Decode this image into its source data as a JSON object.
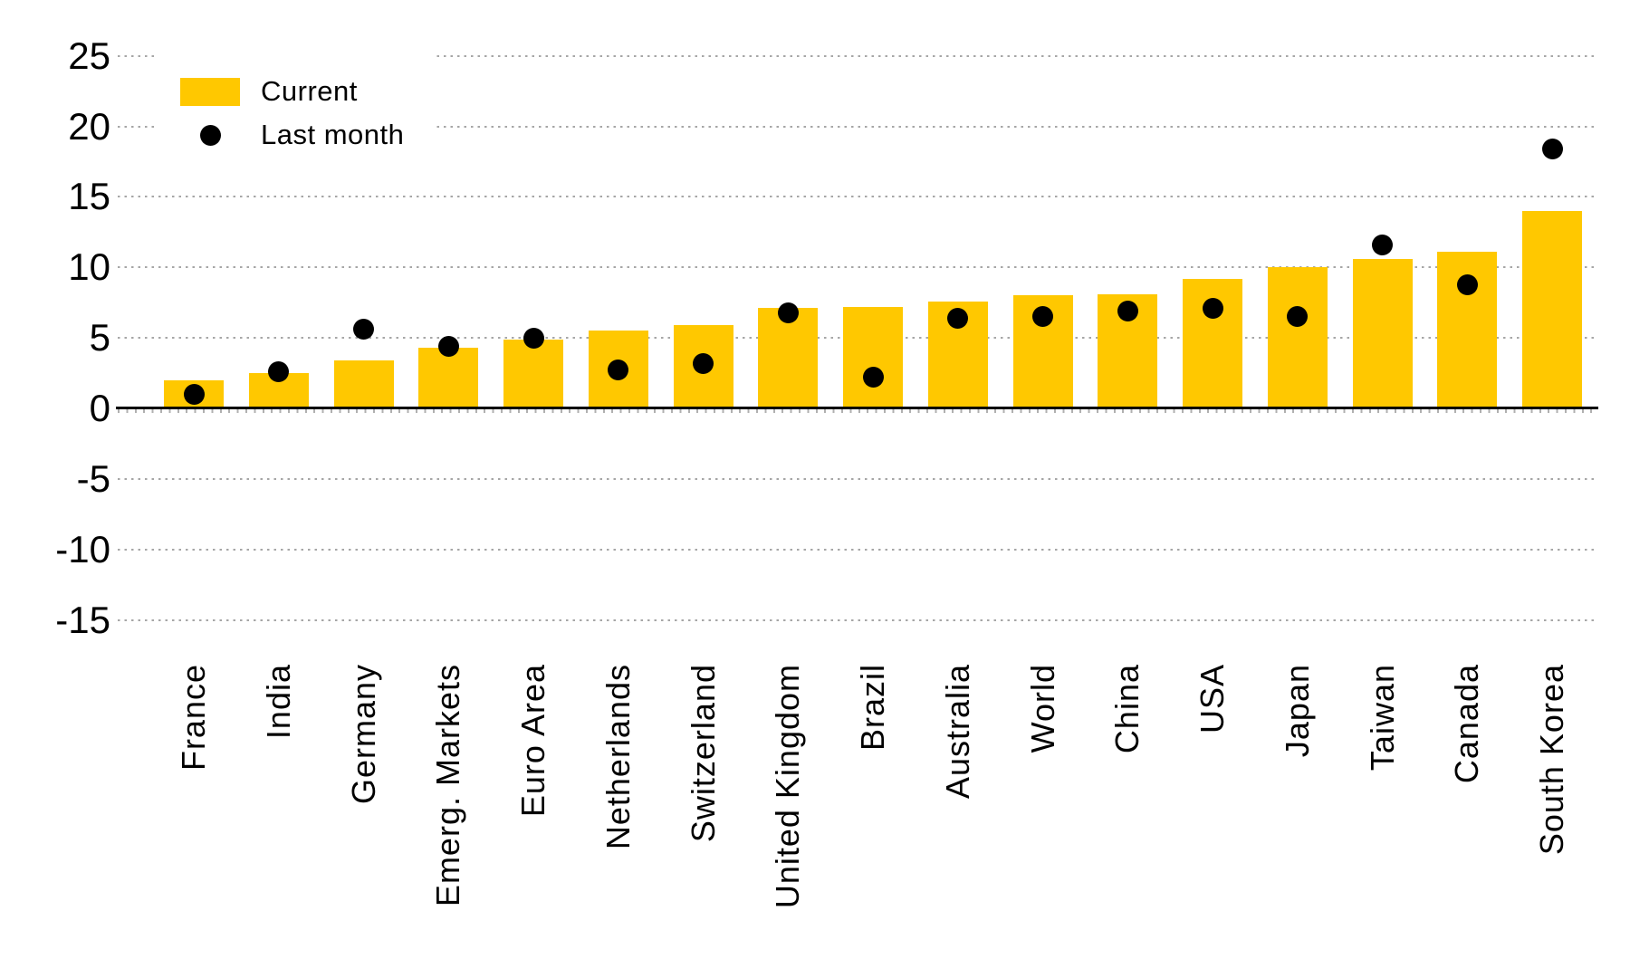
{
  "chart_data": {
    "type": "bar",
    "title": "",
    "categories": [
      "France",
      "India",
      "Germany",
      "Emerg. Markets",
      "Euro Area",
      "Netherlands",
      "Switzerland",
      "United Kingdom",
      "Brazil",
      "Australia",
      "World",
      "China",
      "USA",
      "Japan",
      "Taiwan",
      "Canada",
      "South Korea"
    ],
    "series": [
      {
        "name": "Current",
        "type": "bar",
        "color": "#FFC800",
        "values": [
          2.0,
          2.5,
          3.4,
          4.3,
          4.9,
          5.5,
          5.9,
          7.1,
          7.2,
          7.6,
          8.0,
          8.1,
          9.2,
          10.0,
          10.6,
          11.1,
          14.0
        ]
      },
      {
        "name": "Last month",
        "type": "scatter",
        "color": "#000000",
        "values": [
          1.0,
          2.6,
          5.6,
          4.4,
          5.0,
          2.7,
          3.2,
          6.8,
          2.2,
          6.4,
          6.5,
          6.9,
          7.1,
          6.5,
          11.6,
          8.8,
          18.4
        ]
      }
    ],
    "xlabel": "",
    "ylabel": "",
    "ylim": [
      -15,
      25
    ],
    "yticks": [
      25,
      20,
      15,
      10,
      5,
      0,
      -5,
      -10,
      -15
    ],
    "grid": {
      "axis": "horizontal",
      "style": "dotted",
      "color": "#A6A6A6"
    },
    "legend_position": "top-left",
    "x_tick_rotation_deg": 90
  },
  "colors": {
    "background": "#FFFFFF",
    "bar": "#FFC800",
    "dot": "#000000",
    "axis": "#000000",
    "grid": "#A6A6A6"
  }
}
